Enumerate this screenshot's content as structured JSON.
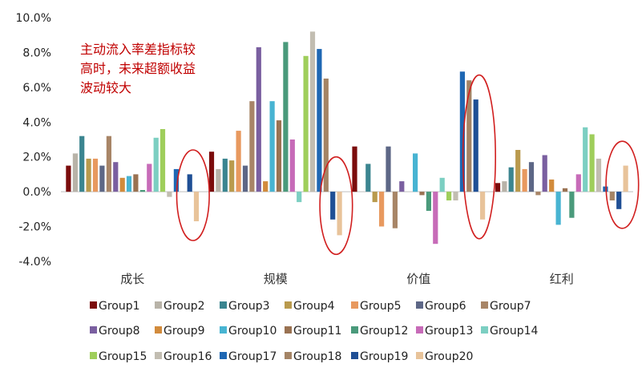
{
  "chart_data": {
    "type": "bar",
    "title": "",
    "xlabel": "",
    "ylabel": "",
    "ylim": [
      -4.0,
      10.0
    ],
    "yticks": [
      "10.0%",
      "8.0%",
      "6.0%",
      "4.0%",
      "2.0%",
      "0.0%",
      "-2.0%",
      "-4.0%"
    ],
    "categories": [
      "成长",
      "规模",
      "价值",
      "红利"
    ],
    "annotation": [
      "主动流入率差指标较",
      "高时，未来超额收益",
      "波动较大"
    ],
    "annotation_color": "#c00000",
    "highlight_circles": "red ellipses around Group19–Group20 bars in each category",
    "legend_position": "bottom",
    "series": [
      {
        "name": "Group1",
        "color": "#7b0c0c",
        "values": [
          1.5,
          2.3,
          2.6,
          0.5
        ]
      },
      {
        "name": "Group2",
        "color": "#b8b3a8",
        "values": [
          2.2,
          1.3,
          0.0,
          0.6
        ]
      },
      {
        "name": "Group3",
        "color": "#3b8590",
        "values": [
          3.2,
          1.9,
          1.6,
          1.4
        ]
      },
      {
        "name": "Group4",
        "color": "#b99a4d",
        "values": [
          1.9,
          1.8,
          -0.6,
          2.4
        ]
      },
      {
        "name": "Group5",
        "color": "#e8995f",
        "values": [
          1.9,
          3.5,
          -2.0,
          1.3
        ]
      },
      {
        "name": "Group6",
        "color": "#5d6786",
        "values": [
          1.5,
          1.5,
          2.6,
          1.7
        ]
      },
      {
        "name": "Group7",
        "color": "#a88567",
        "values": [
          3.2,
          5.2,
          -2.1,
          -0.2
        ]
      },
      {
        "name": "Group8",
        "color": "#7a5fa0",
        "values": [
          1.7,
          8.3,
          0.6,
          2.1
        ]
      },
      {
        "name": "Group9",
        "color": "#d28b3c",
        "values": [
          0.8,
          0.6,
          0.0,
          0.7
        ]
      },
      {
        "name": "Group10",
        "color": "#48b4d2",
        "values": [
          0.9,
          5.2,
          2.2,
          -1.9
        ]
      },
      {
        "name": "Group11",
        "color": "#9a7252",
        "values": [
          1.0,
          4.1,
          -0.2,
          0.2
        ]
      },
      {
        "name": "Group12",
        "color": "#4a9a7b",
        "values": [
          0.1,
          8.6,
          -1.1,
          -1.5
        ]
      },
      {
        "name": "Group13",
        "color": "#c76bb8",
        "values": [
          1.6,
          3.0,
          -3.0,
          1.0
        ]
      },
      {
        "name": "Group14",
        "color": "#7ccfc2",
        "values": [
          3.1,
          -0.6,
          0.8,
          3.7
        ]
      },
      {
        "name": "Group15",
        "color": "#9fce5b",
        "values": [
          3.6,
          7.8,
          -0.5,
          3.3
        ]
      },
      {
        "name": "Group16",
        "color": "#c2bdb1",
        "values": [
          -0.3,
          9.2,
          -0.5,
          1.9
        ]
      },
      {
        "name": "Group17",
        "color": "#1e67b3",
        "values": [
          1.3,
          8.2,
          6.9,
          0.3
        ]
      },
      {
        "name": "Group18",
        "color": "#a48465",
        "values": [
          0.0,
          6.5,
          6.4,
          -0.5
        ]
      },
      {
        "name": "Group19",
        "color": "#1f4f95",
        "values": [
          1.0,
          -1.6,
          5.3,
          -1.0
        ]
      },
      {
        "name": "Group20",
        "color": "#e8c39a",
        "values": [
          -1.7,
          -2.5,
          -1.6,
          1.5
        ]
      }
    ]
  }
}
